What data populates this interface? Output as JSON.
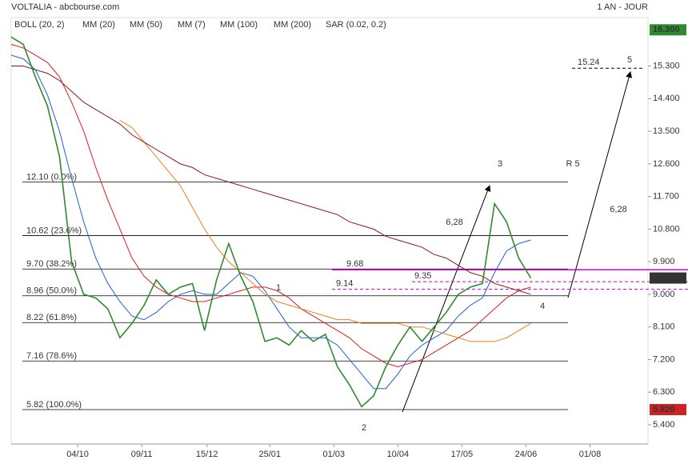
{
  "chart_data": {
    "type": "line",
    "title": "VOLTALIA - abcbourse.com",
    "subtitle": "1 AN - JOUR",
    "x": [
      0,
      1,
      2,
      3,
      4,
      5,
      6,
      7,
      8,
      9,
      10,
      11,
      12,
      13,
      14,
      15,
      16,
      17,
      18,
      19,
      20,
      21,
      22,
      23,
      24,
      25,
      26,
      27,
      28,
      29,
      30,
      31,
      32,
      33,
      34,
      35,
      36,
      37,
      38,
      39,
      40,
      41,
      42,
      43
    ],
    "values": [
      16.1,
      15.9,
      15.0,
      14.2,
      12.8,
      9.9,
      9.0,
      8.9,
      8.6,
      7.8,
      8.2,
      8.7,
      9.4,
      9.0,
      9.2,
      9.3,
      8.0,
      9.4,
      10.4,
      9.5,
      8.8,
      7.7,
      7.8,
      7.6,
      8.0,
      7.7,
      7.9,
      7.0,
      6.5,
      5.9,
      6.2,
      7.0,
      7.6,
      8.1,
      7.7,
      8.1,
      8.5,
      9.0,
      9.2,
      9.3,
      11.5,
      11.0,
      10.0,
      9.45
    ],
    "color": "#2e8b2e",
    "series": [
      {
        "name": "BOLL (20, 2)",
        "color": "#333333"
      },
      {
        "name": "MM (20)",
        "color": "#1f5fd6",
        "values": [
          15.6,
          15.5,
          15.2,
          14.5,
          13.5,
          12.2,
          11.0,
          10.0,
          9.3,
          8.8,
          8.4,
          8.3,
          8.5,
          8.8,
          9.0,
          9.1,
          9.0,
          9.0,
          9.3,
          9.6,
          9.5,
          9.1,
          8.6,
          8.1,
          7.8,
          7.8,
          7.8,
          7.6,
          7.2,
          6.8,
          6.4,
          6.4,
          6.8,
          7.3,
          7.6,
          7.8,
          8.0,
          8.4,
          8.7,
          8.9,
          9.6,
          10.2,
          10.4,
          10.5
        ]
      },
      {
        "name": "MM (50)",
        "color": "#d62020",
        "values": [
          15.9,
          15.8,
          15.6,
          15.4,
          15.0,
          14.3,
          13.5,
          12.5,
          11.6,
          10.8,
          10.0,
          9.5,
          9.2,
          9.0,
          8.9,
          8.8,
          8.8,
          8.9,
          9.0,
          9.1,
          9.2,
          9.2,
          9.1,
          8.9,
          8.6,
          8.4,
          8.2,
          8.0,
          7.8,
          7.5,
          7.3,
          7.1,
          7.0,
          7.1,
          7.2,
          7.4,
          7.6,
          7.8,
          8.0,
          8.3,
          8.6,
          8.9,
          9.1,
          9.2
        ]
      },
      {
        "name": "MM (7)",
        "color": "#1a8c1a"
      },
      {
        "name": "MM (100)",
        "color": "#f07f1e",
        "values": [
          null,
          null,
          null,
          null,
          null,
          null,
          null,
          null,
          null,
          13.8,
          13.6,
          13.2,
          12.8,
          12.4,
          12.0,
          11.4,
          10.8,
          10.3,
          9.9,
          9.6,
          9.3,
          9.0,
          8.8,
          8.7,
          8.6,
          8.5,
          8.4,
          8.3,
          8.3,
          8.2,
          8.2,
          8.2,
          8.2,
          8.1,
          8.1,
          8.0,
          7.9,
          7.8,
          7.7,
          7.7,
          7.7,
          7.8,
          8.0,
          8.2
        ]
      },
      {
        "name": "MM (200)",
        "color": "#8b1a1a",
        "values": [
          15.3,
          15.3,
          15.2,
          15.1,
          14.9,
          14.6,
          14.3,
          14.1,
          13.9,
          13.7,
          13.4,
          13.2,
          13.0,
          12.8,
          12.6,
          12.5,
          12.3,
          12.2,
          12.1,
          12.0,
          11.9,
          11.8,
          11.7,
          11.6,
          11.5,
          11.4,
          11.3,
          11.2,
          11.0,
          10.9,
          10.8,
          10.6,
          10.5,
          10.4,
          10.3,
          10.1,
          10.0,
          9.8,
          9.6,
          9.5,
          9.3,
          9.2,
          9.1,
          9.0
        ]
      },
      {
        "name": "SAR (0.02, 0.2)",
        "color": "#cc0000"
      }
    ],
    "xlim": [
      0,
      52.7
    ],
    "xticks": [
      {
        "value": 5.5,
        "label": "04/10"
      },
      {
        "value": 10.8,
        "label": "09/11"
      },
      {
        "value": 16.2,
        "label": "15/12"
      },
      {
        "value": 21.4,
        "label": "25/01"
      },
      {
        "value": 26.7,
        "label": "01/03"
      },
      {
        "value": 32,
        "label": "10/04"
      },
      {
        "value": 37.3,
        "label": "17/05"
      },
      {
        "value": 42.6,
        "label": "24/06"
      },
      {
        "value": 47.9,
        "label": "01/08"
      }
    ],
    "ylim": [
      4.87,
      16.35
    ],
    "yticks": [
      {
        "value": 15.3,
        "label": "15.300"
      },
      {
        "value": 14.4,
        "label": "14.400"
      },
      {
        "value": 13.5,
        "label": "13.500"
      },
      {
        "value": 12.6,
        "label": "12.600"
      },
      {
        "value": 11.7,
        "label": "11.700"
      },
      {
        "value": 10.8,
        "label": "10.800"
      },
      {
        "value": 9.9,
        "label": "9.900"
      },
      {
        "value": 9,
        "label": "9.000"
      },
      {
        "value": 8.1,
        "label": "8.100"
      },
      {
        "value": 7.2,
        "label": "7.200"
      },
      {
        "value": 6.3,
        "label": "6.300"
      },
      {
        "value": 5.4,
        "label": "5.400"
      }
    ],
    "price_labels": [
      {
        "value": 16.3,
        "label": "16.300",
        "color": "#2e8b2e"
      },
      {
        "value": 9.45,
        "label": "9.450",
        "color": "#333333"
      },
      {
        "value": 5.82,
        "label": "5.820",
        "color": "#cc2222"
      }
    ],
    "fib_levels": [
      {
        "value": 12.1,
        "label": "12.10  (0.0%)"
      },
      {
        "value": 10.62,
        "label": "10.62  (23.6%)"
      },
      {
        "value": 9.7,
        "label": "9.70  (38.2%)"
      },
      {
        "value": 8.96,
        "label": "8.96  (50.0%)"
      },
      {
        "value": 8.22,
        "label": "8.22  (61.8%)"
      },
      {
        "value": 7.16,
        "label": "7.16  (78.6%)"
      },
      {
        "value": 5.82,
        "label": "5.82  (100.0%)"
      }
    ],
    "levels": [
      {
        "value": 9.68,
        "label": "9.68",
        "color": "#cc00cc"
      },
      {
        "value": 9.35,
        "label": "9.35",
        "color": "#cc00cc"
      },
      {
        "value": 9.14,
        "label": "9.14",
        "color": "#cc00cc"
      },
      {
        "value": 15.24,
        "label": "15.24",
        "color": "#000000"
      }
    ],
    "annotations": [
      "1",
      "2",
      "3",
      "4",
      "5",
      "R 5",
      "6,28",
      "6,28"
    ]
  }
}
